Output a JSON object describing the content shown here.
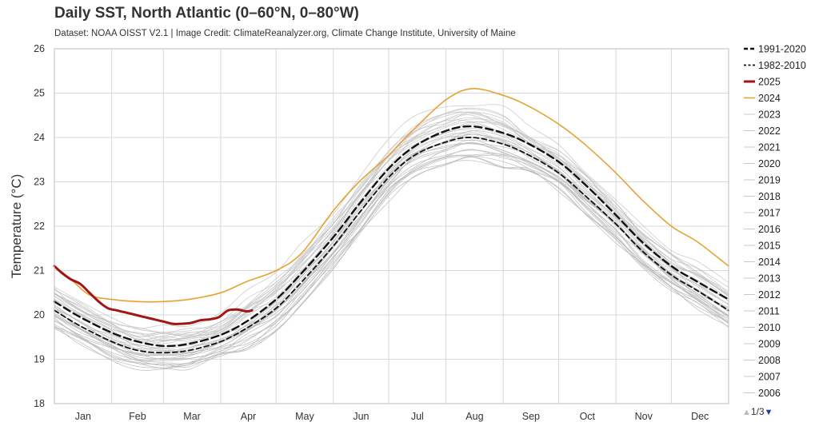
{
  "chart_data": {
    "type": "line",
    "title": "Daily SST, North Atlantic (0–60°N, 0–80°W)",
    "subtitle": "Dataset: NOAA OISST V2.1 | Image Credit: ClimateReanalyzer.org, Climate Change Institute, University of Maine",
    "ylabel": "Temperature (°C)",
    "xlabel": "",
    "ylim": [
      18,
      26
    ],
    "yticks": [
      18,
      19,
      20,
      21,
      22,
      23,
      24,
      25,
      26
    ],
    "xlim": [
      1,
      366
    ],
    "months": [
      "Jan",
      "Feb",
      "Mar",
      "Apr",
      "May",
      "Jun",
      "Jul",
      "Aug",
      "Sep",
      "Oct",
      "Nov",
      "Dec"
    ],
    "grid": true,
    "legend_placement": "right",
    "legend_page": "1/3",
    "series": [
      {
        "name": "1991-2020",
        "color": "#111111",
        "style": "dashed-bold",
        "x": [
          1,
          15,
          32,
          46,
          60,
          74,
          91,
          105,
          121,
          135,
          152,
          166,
          182,
          196,
          213,
          227,
          244,
          258,
          274,
          288,
          305,
          319,
          335,
          349,
          366
        ],
        "y": [
          20.3,
          19.95,
          19.6,
          19.4,
          19.3,
          19.35,
          19.55,
          19.85,
          20.35,
          20.95,
          21.75,
          22.5,
          23.3,
          23.8,
          24.15,
          24.25,
          24.1,
          23.85,
          23.45,
          22.95,
          22.25,
          21.65,
          21.1,
          20.75,
          20.35
        ]
      },
      {
        "name": "1982-2010",
        "color": "#111111",
        "style": "dashed-dot",
        "x": [
          1,
          15,
          32,
          46,
          60,
          74,
          91,
          105,
          121,
          135,
          152,
          166,
          182,
          196,
          213,
          227,
          244,
          258,
          274,
          288,
          305,
          319,
          335,
          349,
          366
        ],
        "y": [
          20.1,
          19.75,
          19.4,
          19.2,
          19.15,
          19.2,
          19.4,
          19.7,
          20.15,
          20.75,
          21.55,
          22.3,
          23.1,
          23.6,
          23.9,
          24.0,
          23.85,
          23.6,
          23.2,
          22.7,
          22.05,
          21.45,
          20.9,
          20.55,
          20.1
        ]
      },
      {
        "name": "2025",
        "color": "#a31515",
        "style": "bold",
        "x": [
          1,
          5,
          10,
          15,
          20,
          25,
          30,
          35,
          40,
          45,
          50,
          55,
          60,
          65,
          70,
          75,
          80,
          85,
          90,
          95,
          100,
          105,
          108
        ],
        "y": [
          21.1,
          20.95,
          20.8,
          20.7,
          20.5,
          20.3,
          20.15,
          20.1,
          20.05,
          20.0,
          19.95,
          19.9,
          19.85,
          19.8,
          19.8,
          19.82,
          19.88,
          19.9,
          19.95,
          20.1,
          20.12,
          20.08,
          20.1
        ]
      },
      {
        "name": "2024",
        "color": "#e8a232",
        "style": "solid",
        "x": [
          1,
          10,
          20,
          32,
          46,
          60,
          74,
          91,
          105,
          121,
          135,
          152,
          166,
          182,
          196,
          213,
          227,
          244,
          258,
          274,
          288,
          305,
          319,
          335,
          349,
          366
        ],
        "y": [
          21.1,
          20.8,
          20.45,
          20.35,
          20.3,
          20.3,
          20.35,
          20.5,
          20.75,
          21.0,
          21.4,
          22.35,
          23.0,
          23.6,
          24.2,
          24.85,
          25.1,
          24.95,
          24.7,
          24.3,
          23.85,
          23.2,
          22.6,
          22.0,
          21.65,
          21.1
        ]
      },
      {
        "name": "2023",
        "color": "#b9b9b9",
        "style": "thin"
      },
      {
        "name": "2022",
        "color": "#b9b9b9",
        "style": "thin"
      },
      {
        "name": "2021",
        "color": "#b9b9b9",
        "style": "thin"
      },
      {
        "name": "2020",
        "color": "#b9b9b9",
        "style": "thin"
      },
      {
        "name": "2019",
        "color": "#b9b9b9",
        "style": "thin"
      },
      {
        "name": "2018",
        "color": "#b9b9b9",
        "style": "thin"
      },
      {
        "name": "2017",
        "color": "#b9b9b9",
        "style": "thin"
      },
      {
        "name": "2016",
        "color": "#b9b9b9",
        "style": "thin"
      },
      {
        "name": "2015",
        "color": "#b9b9b9",
        "style": "thin"
      },
      {
        "name": "2014",
        "color": "#b9b9b9",
        "style": "thin"
      },
      {
        "name": "2013",
        "color": "#b9b9b9",
        "style": "thin"
      },
      {
        "name": "2012",
        "color": "#b9b9b9",
        "style": "thin"
      },
      {
        "name": "2011",
        "color": "#b9b9b9",
        "style": "thin"
      },
      {
        "name": "2010",
        "color": "#b9b9b9",
        "style": "thin"
      },
      {
        "name": "2009",
        "color": "#b9b9b9",
        "style": "thin"
      },
      {
        "name": "2008",
        "color": "#b9b9b9",
        "style": "thin"
      },
      {
        "name": "2007",
        "color": "#b9b9b9",
        "style": "thin"
      },
      {
        "name": "2006",
        "color": "#b9b9b9",
        "style": "thin"
      }
    ]
  }
}
